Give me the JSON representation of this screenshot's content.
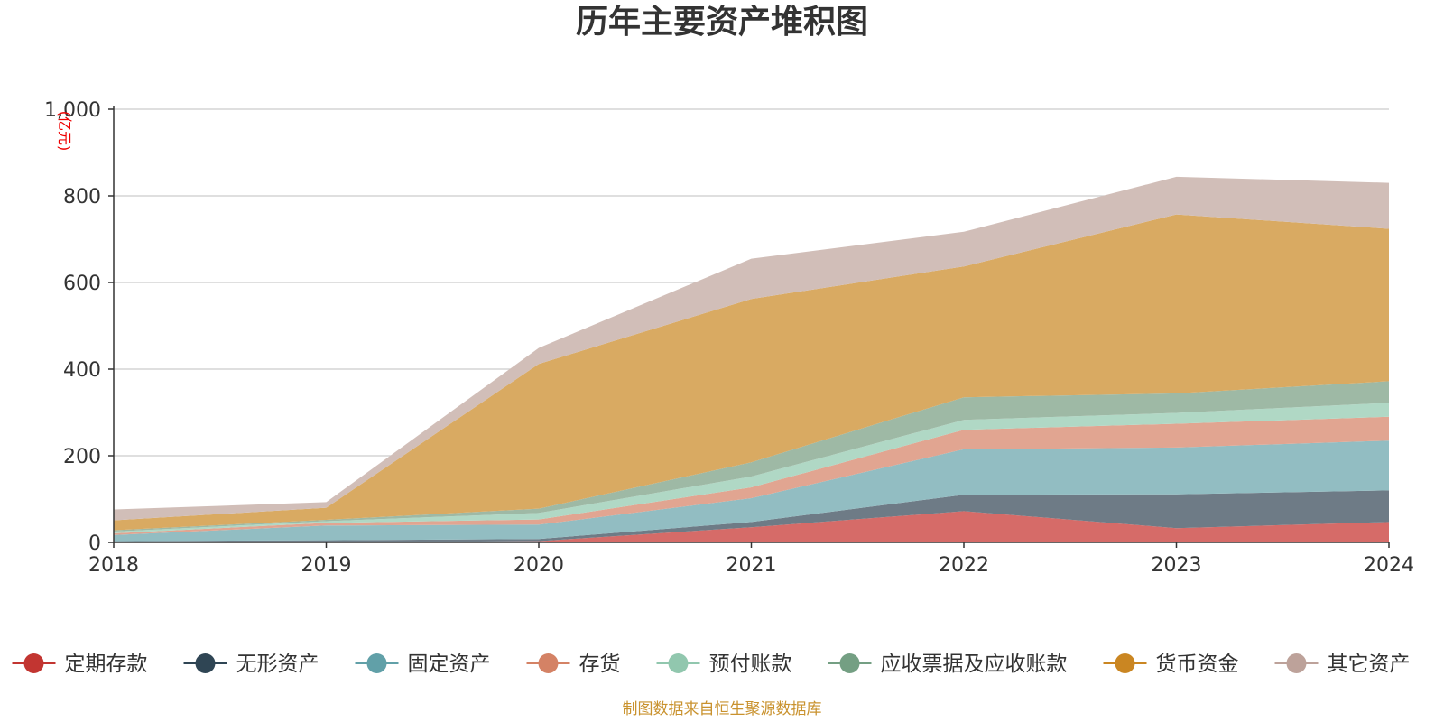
{
  "chart_data": {
    "type": "area",
    "stacked": true,
    "title": "历年主要资产堆积图",
    "unit_label": "(亿元)",
    "x": [
      "2018",
      "2019",
      "2020",
      "2021",
      "2022",
      "2023",
      "2024"
    ],
    "ylim": [
      0,
      1000
    ],
    "y_ticks": [
      0,
      200,
      400,
      600,
      800,
      1000
    ],
    "y_tick_labels": [
      "0",
      "200",
      "400",
      "600",
      "800",
      "1,000"
    ],
    "grid": true,
    "legend_position": "bottom",
    "source": "制图数据来自恒生聚源数据库",
    "series": [
      {
        "name": "定期存款",
        "color": "#c23531",
        "fill": "#d66b68",
        "values": [
          0,
          0,
          3,
          35,
          72,
          33,
          47
        ]
      },
      {
        "name": "无形资产",
        "color": "#2f4554",
        "fill": "#6e7b86",
        "values": [
          3,
          5,
          5,
          12,
          38,
          78,
          73
        ]
      },
      {
        "name": "固定资产",
        "color": "#61a0a8",
        "fill": "#92bdc2",
        "values": [
          14,
          34,
          33,
          55,
          105,
          108,
          115
        ]
      },
      {
        "name": "存货",
        "color": "#d48265",
        "fill": "#e1a591",
        "values": [
          4,
          6,
          12,
          25,
          45,
          55,
          55
        ]
      },
      {
        "name": "预付账款",
        "color": "#91c7ae",
        "fill": "#b0d8c5",
        "values": [
          4,
          4,
          15,
          25,
          23,
          25,
          32
        ]
      },
      {
        "name": "应收票据及应收账款",
        "color": "#749f83",
        "fill": "#9eb9a5",
        "values": [
          3,
          3,
          10,
          33,
          52,
          45,
          50
        ]
      },
      {
        "name": "货币资金",
        "color": "#ca8622",
        "fill": "#d9aa62",
        "values": [
          23,
          28,
          334,
          377,
          302,
          413,
          352
        ]
      },
      {
        "name": "其它资产",
        "color": "#bda29a",
        "fill": "#d1beb8",
        "values": [
          25,
          13,
          37,
          93,
          80,
          87,
          106
        ]
      }
    ]
  }
}
